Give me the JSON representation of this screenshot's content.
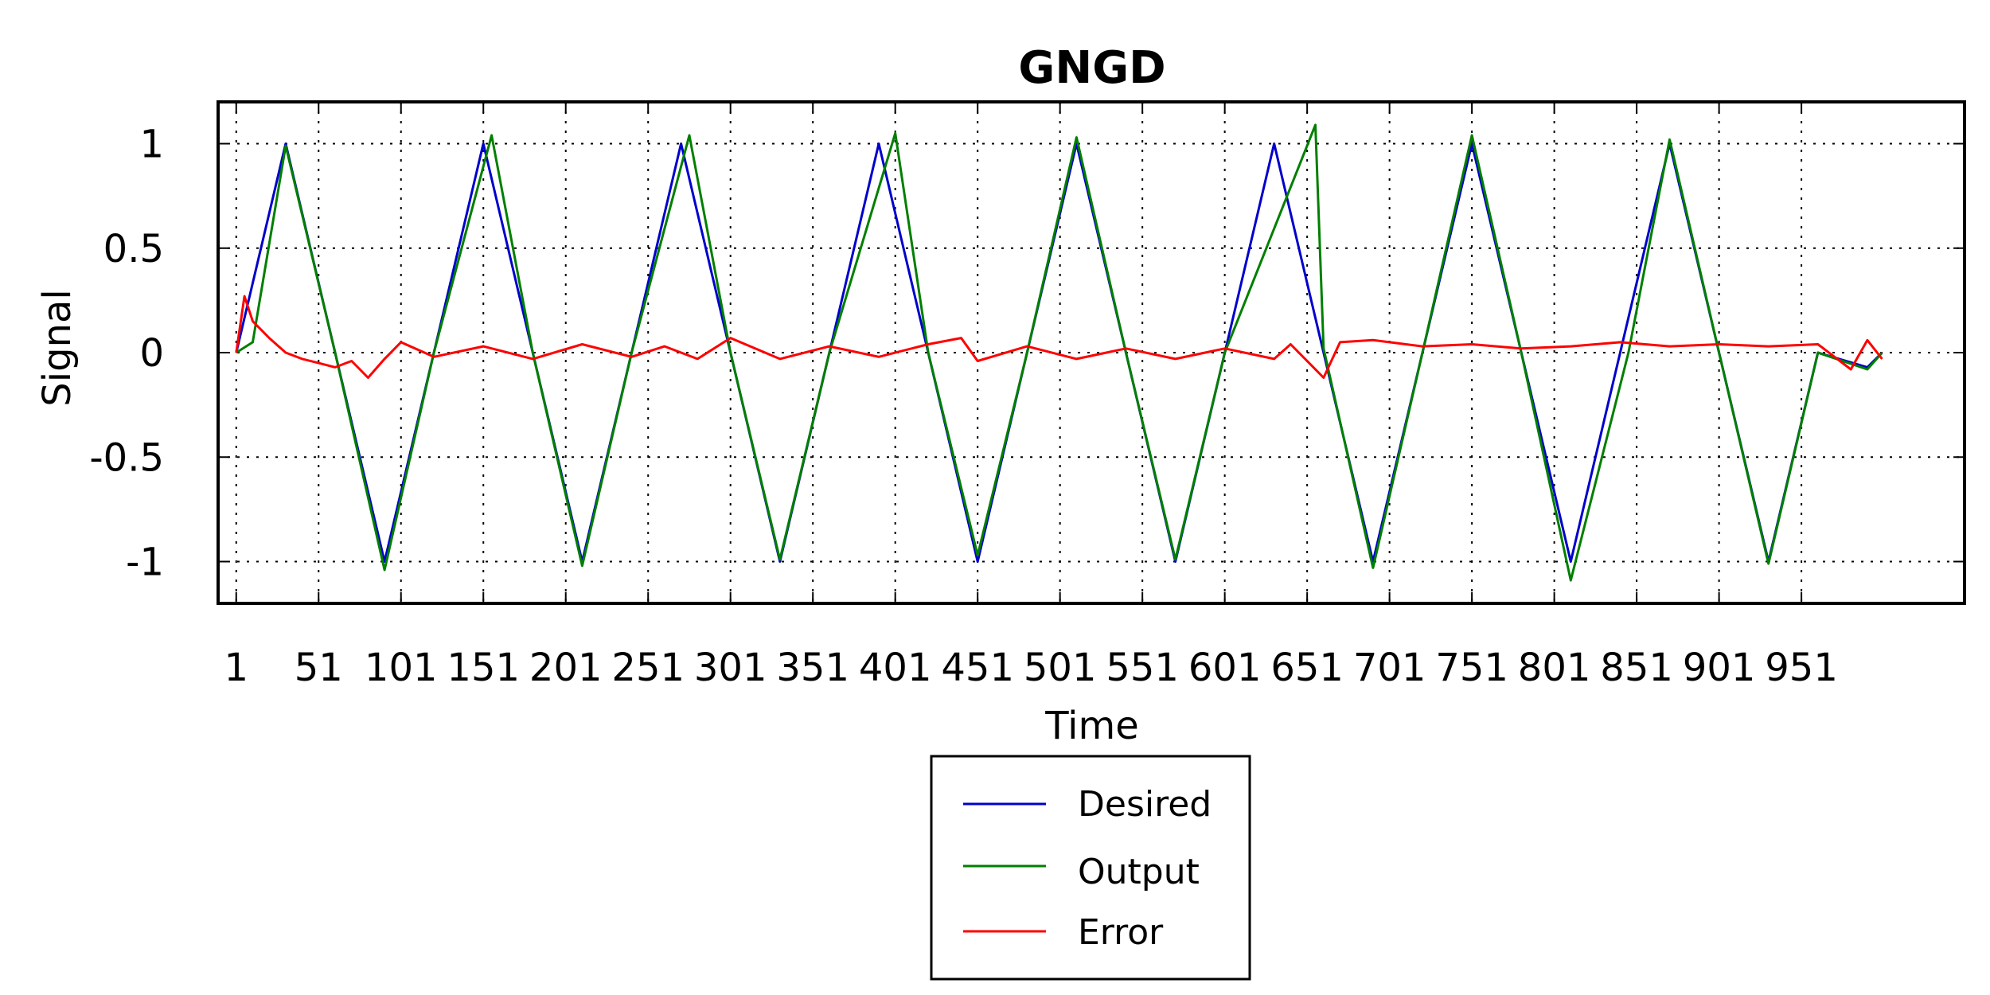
{
  "chart_data": {
    "type": "line",
    "title": "GNGD",
    "xlabel": "Time",
    "ylabel": "Signal",
    "xlim": [
      -10,
      1050
    ],
    "ylim": [
      -1.2,
      1.2
    ],
    "x_ticks": [
      1,
      51,
      101,
      151,
      201,
      251,
      301,
      351,
      401,
      451,
      501,
      551,
      601,
      651,
      701,
      751,
      801,
      851,
      901,
      951
    ],
    "x_tick_labels": [
      "1",
      "51",
      "101",
      "151",
      "201",
      "251",
      "301",
      "351",
      "401",
      "451",
      "501",
      "551",
      "601",
      "651",
      "701",
      "751",
      "801",
      "851",
      "901",
      "951"
    ],
    "y_ticks": [
      1,
      0.5,
      0,
      -0.5,
      -1
    ],
    "y_tick_labels": [
      "1",
      "0.5",
      "0",
      "-0.5",
      "-1"
    ],
    "grid": true,
    "legend_position": "below",
    "series": [
      {
        "name": "Desired",
        "color": "#0000cc",
        "x": [
          1,
          31,
          61,
          91,
          121,
          151,
          181,
          211,
          241,
          271,
          301,
          331,
          361,
          391,
          421,
          451,
          481,
          511,
          541,
          571,
          601,
          631,
          661,
          691,
          721,
          751,
          781,
          811,
          841,
          871,
          901,
          931,
          961,
          991,
          1000
        ],
        "values": [
          0,
          1,
          0,
          -1,
          0,
          1,
          0,
          -1,
          0,
          1,
          0,
          -1,
          0,
          1,
          0,
          -1,
          0,
          1,
          0,
          -1,
          0,
          1,
          0,
          -1,
          0,
          1,
          0,
          -1,
          0,
          1,
          0,
          -1,
          0,
          -0.07,
          0
        ]
      },
      {
        "name": "Output",
        "color": "#007f00",
        "x": [
          1,
          11,
          31,
          61,
          91,
          121,
          156,
          181,
          211,
          241,
          276,
          301,
          331,
          361,
          401,
          421,
          451,
          481,
          511,
          541,
          571,
          601,
          656,
          661,
          691,
          721,
          751,
          781,
          811,
          846,
          871,
          901,
          931,
          961,
          991,
          1000
        ],
        "values": [
          0,
          0.05,
          0.99,
          0,
          -1.04,
          0,
          1.04,
          0,
          -1.02,
          0,
          1.04,
          0,
          -0.99,
          0,
          1.05,
          0,
          -0.97,
          0,
          1.03,
          0,
          -0.99,
          0,
          1.09,
          0.02,
          -1.03,
          0,
          1.04,
          0,
          -1.09,
          0,
          1.02,
          0,
          -1.01,
          0,
          -0.08,
          0
        ]
      },
      {
        "name": "Error",
        "color": "#ff0000",
        "x": [
          1,
          6,
          11,
          21,
          31,
          41,
          51,
          61,
          71,
          81,
          91,
          101,
          121,
          151,
          181,
          211,
          241,
          261,
          281,
          301,
          331,
          361,
          391,
          421,
          441,
          451,
          481,
          511,
          541,
          571,
          601,
          631,
          641,
          661,
          671,
          691,
          721,
          751,
          781,
          811,
          841,
          871,
          901,
          931,
          961,
          981,
          991,
          1000
        ],
        "values": [
          0,
          0.27,
          0.15,
          0.07,
          0.0,
          -0.03,
          -0.05,
          -0.07,
          -0.04,
          -0.12,
          -0.03,
          0.05,
          -0.02,
          0.03,
          -0.03,
          0.04,
          -0.02,
          0.03,
          -0.03,
          0.07,
          -0.03,
          0.03,
          -0.02,
          0.04,
          0.07,
          -0.04,
          0.03,
          -0.03,
          0.02,
          -0.03,
          0.02,
          -0.03,
          0.04,
          -0.12,
          0.05,
          0.06,
          0.03,
          0.04,
          0.02,
          0.03,
          0.05,
          0.03,
          0.04,
          0.03,
          0.04,
          -0.08,
          0.06,
          -0.03
        ]
      }
    ]
  }
}
